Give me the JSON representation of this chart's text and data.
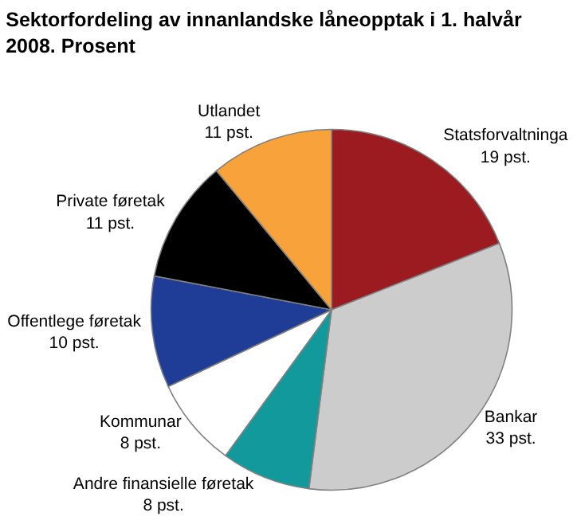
{
  "chart_data": {
    "type": "pie",
    "title": "Sektorfordeling av innanlandske låneopptak i 1. halvår 2008. Prosent",
    "categories": [
      "Statsforvaltninga",
      "Bankar",
      "Andre finansielle føretak",
      "Kommunar",
      "Offentlege føretak",
      "Private føretak",
      "Utlandet"
    ],
    "values": [
      19,
      33,
      8,
      8,
      10,
      11,
      11
    ],
    "value_labels": [
      "19 pst.",
      "33 pst.",
      "8 pst.",
      "8 pst.",
      "10 pst.",
      "11 pst.",
      "11 pst."
    ],
    "colors": [
      "#9b1b20",
      "#cccccc",
      "#12999b",
      "#ffffff",
      "#1f3c96",
      "#000000",
      "#f7a23b"
    ],
    "legend": false
  }
}
